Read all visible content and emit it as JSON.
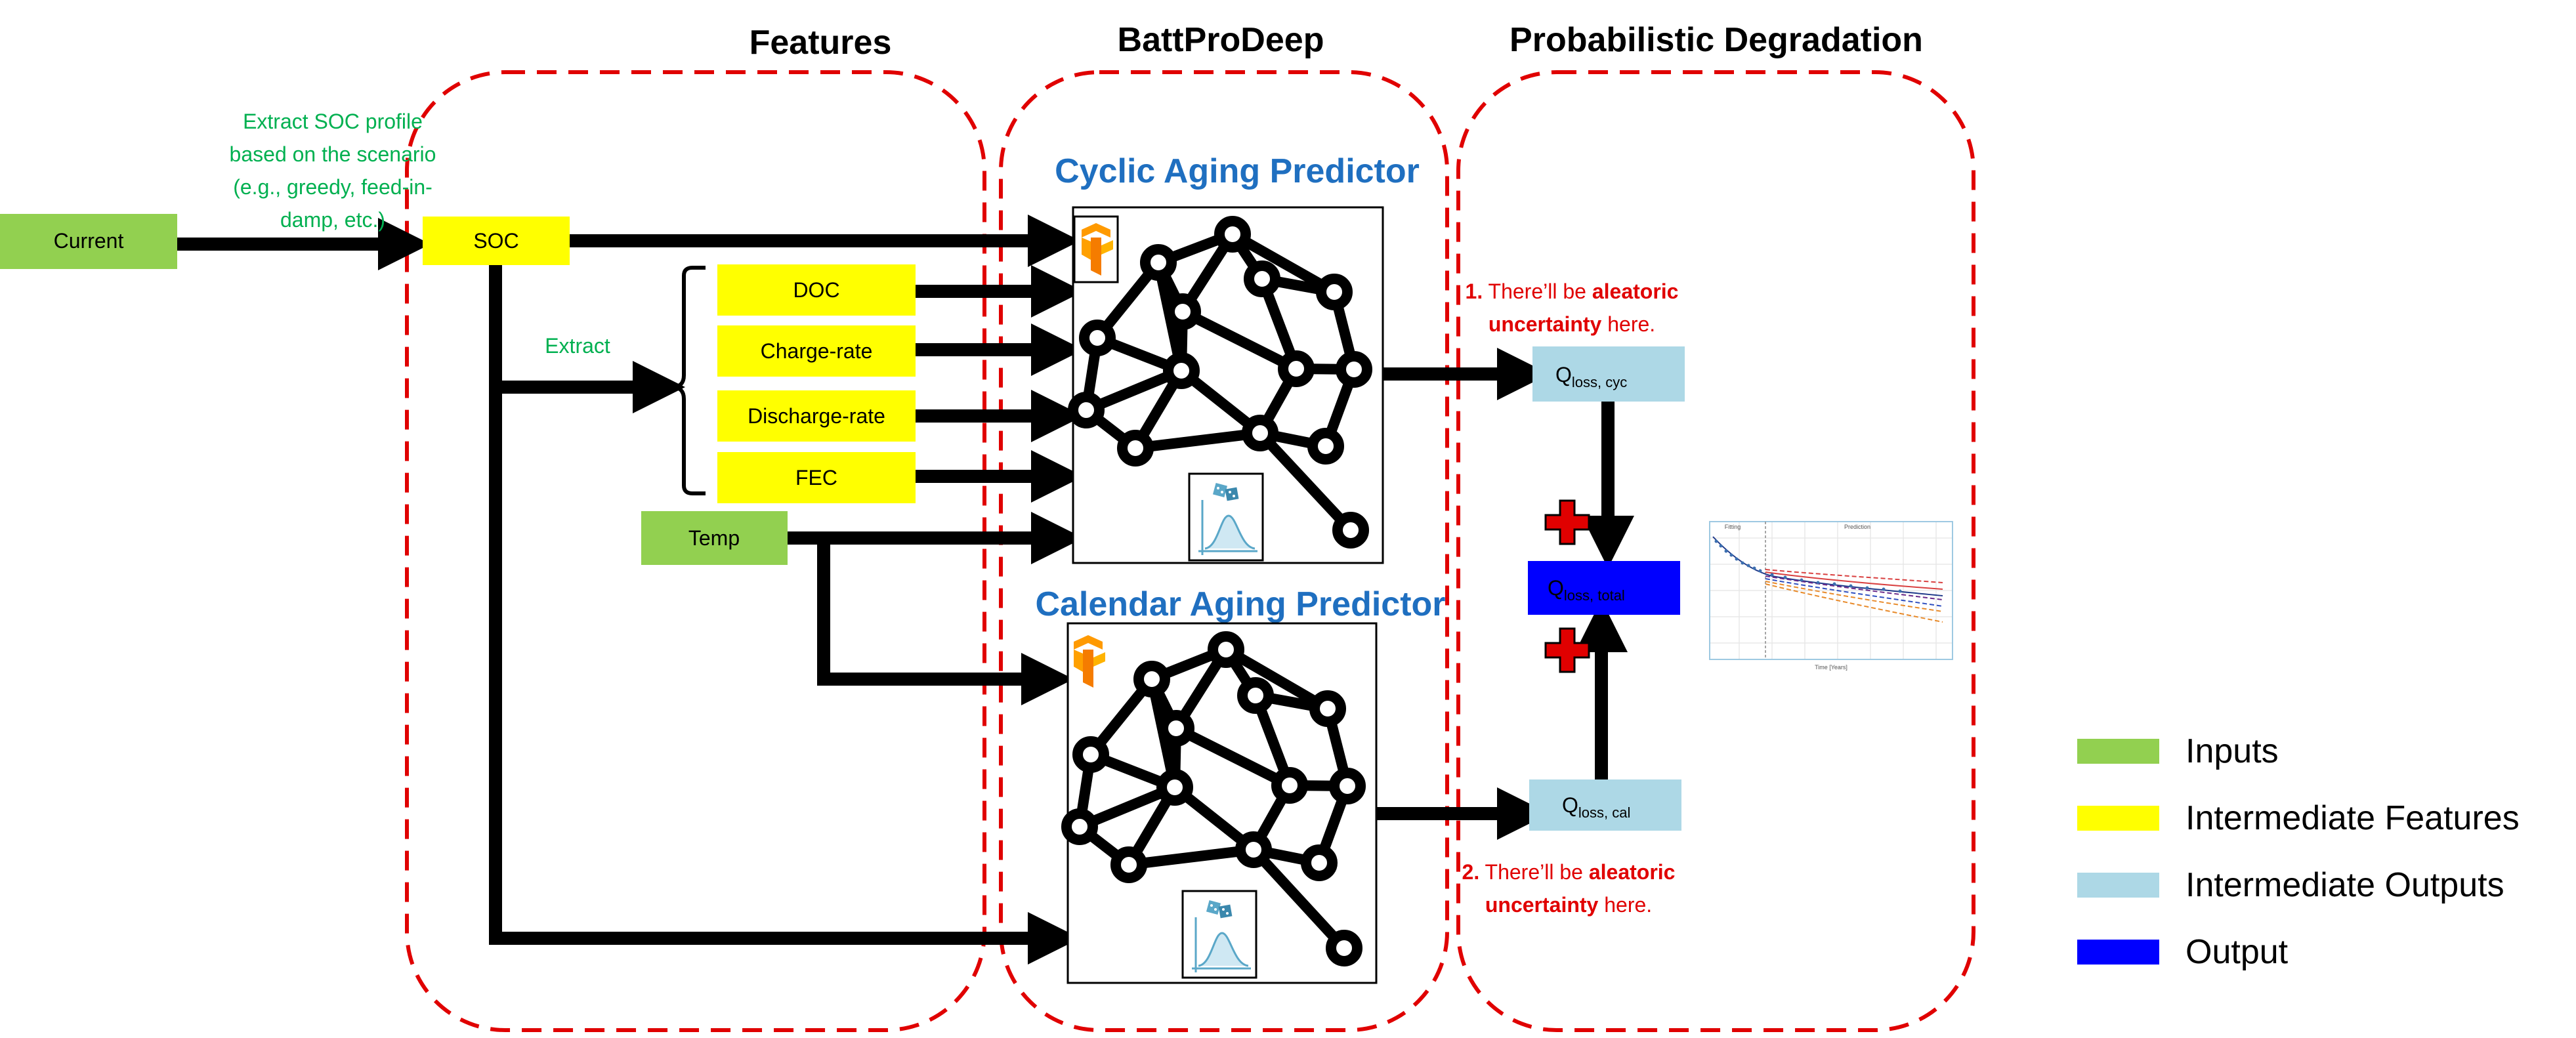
{
  "sections": {
    "features": "Features",
    "battprodeep": "BattProDeep",
    "probabilistic": "Probabilistic Degradation"
  },
  "inputs": {
    "current": "Current",
    "temp": "Temp"
  },
  "features": {
    "soc": "SOC",
    "doc": "DOC",
    "charge_rate": "Charge-rate",
    "discharge_rate": "Discharge-rate",
    "fec": "FEC"
  },
  "annotations": {
    "extract_soc_line1": "Extract SOC profile",
    "extract_soc_line2": "based on the scenario",
    "extract_soc_line3": "(e.g., greedy, feed-in-",
    "extract_soc_line4": "damp, etc.)",
    "extract": "Extract"
  },
  "predictors": {
    "cyclic": "Cyclic Aging Predictor",
    "calendar": "Calendar Aging Predictor"
  },
  "outputs": {
    "q_cyc_main": "Q",
    "q_cyc_sub": "loss, cyc",
    "q_cal_main": "Q",
    "q_cal_sub": "loss, cal",
    "q_total_main": "Q",
    "q_total_sub": "loss, total"
  },
  "notes": {
    "note1_num": "1.",
    "note1_pre": " There’ll be ",
    "note1_bold": "aleatoric",
    "note1_line2_bold": "uncertainty",
    "note1_line2_rest": " here.",
    "note2_num": "2.",
    "note2_pre": " There’ll be ",
    "note2_bold": "aleatoric",
    "note2_line2_bold": "uncertainty",
    "note2_line2_rest": " here."
  },
  "mini_chart": {
    "fitting": "Fitting",
    "prediction": "Prediction",
    "xlabel": "Time [Years]"
  },
  "legend": {
    "inputs": "Inputs",
    "intermediate_features": "Intermediate Features",
    "intermediate_outputs": "Intermediate Outputs",
    "output": "Output"
  },
  "colors": {
    "input": "#92d050",
    "feature": "#ffff00",
    "intermediate_output": "#add8e6",
    "output": "#0000ff",
    "dashed_border": "#e00000",
    "predictor_title": "#1f6fc0",
    "annotation_green": "#00b050"
  },
  "icons": {
    "framework_logo": "tensorflow-logo-icon",
    "probability": "dice-distribution-icon",
    "plus": "plus-icon"
  }
}
